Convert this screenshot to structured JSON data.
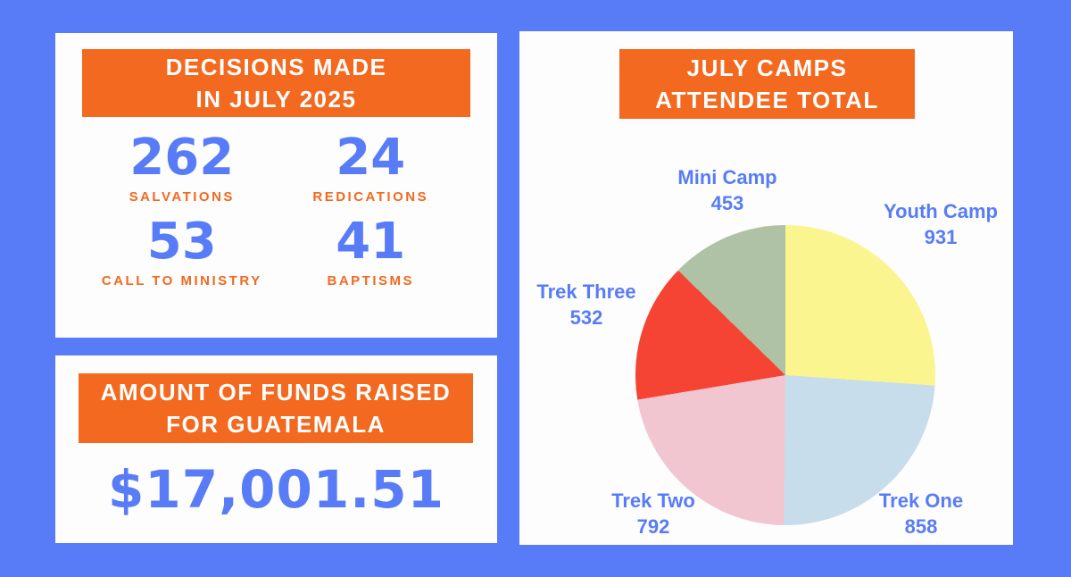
{
  "page": {
    "background_color": "#587cf7",
    "accent_orange": "#f2691f",
    "accent_blue": "#587cf7",
    "card_color": "#fdfdfd"
  },
  "decisions_card": {
    "title_line1": "DECISIONS MADE",
    "title_line2": "IN JULY 2025",
    "stats": [
      {
        "value": "262",
        "label": "SALVATIONS"
      },
      {
        "value": "24",
        "label": "REDICATIONS"
      },
      {
        "value": "53",
        "label": "CALL TO MINISTRY"
      },
      {
        "value": "41",
        "label": "BAPTISMS"
      }
    ]
  },
  "funds_card": {
    "title_line1": "AMOUNT OF FUNDS RAISED",
    "title_line2": "FOR GUATEMALA",
    "amount": "$17,001.51"
  },
  "camps_card": {
    "title_line1": "JULY CAMPS",
    "title_line2": "ATTENDEE TOTAL"
  },
  "chart_data": {
    "type": "pie",
    "title": "JULY CAMPS ATTENDEE TOTAL",
    "labels": [
      "Youth Camp",
      "Trek One",
      "Trek Two",
      "Trek Three",
      "Mini Camp"
    ],
    "values": [
      931,
      858,
      792,
      532,
      453
    ],
    "colors": [
      "#faf58f",
      "#c7ddeb",
      "#f2c6d0",
      "#f64434",
      "#afc2a5"
    ],
    "start_angle_deg": 0,
    "direction": "clockwise",
    "legend_position": "labels-around-pie",
    "label_text_color": "#587cf7"
  }
}
